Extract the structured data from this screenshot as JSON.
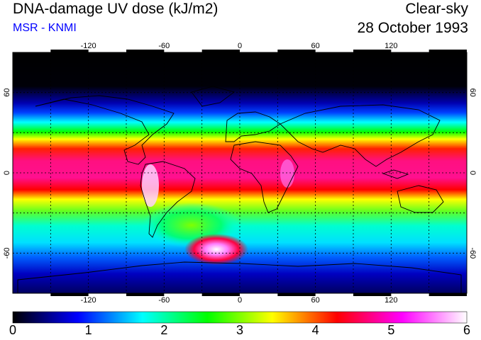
{
  "header": {
    "title": "DNA-damage UV dose (kJ/m2)",
    "source": "MSR - KNMI",
    "condition": "Clear-sky",
    "date": "28 October 1993"
  },
  "map": {
    "lon_range": [
      -180,
      180
    ],
    "lat_range": [
      -90,
      90
    ],
    "lon_ticks": [
      "-120",
      "-60",
      "0",
      "60",
      "120"
    ],
    "lat_ticks": [
      "60",
      "0",
      "-60"
    ],
    "grid_lon_values": [
      -150,
      -120,
      -90,
      -60,
      -30,
      0,
      30,
      60,
      90,
      120,
      150
    ],
    "grid_lat_values": [
      60,
      30,
      0,
      -30,
      -60
    ]
  },
  "colorbar": {
    "min": 0,
    "max": 6,
    "labels": [
      "0",
      "1",
      "2",
      "3",
      "4",
      "5",
      "6"
    ],
    "stops": [
      "#000000",
      "#0000ff",
      "#00ffff",
      "#00ff00",
      "#ffff00",
      "#ff0000",
      "#ff00ff",
      "#ffffff"
    ]
  }
}
